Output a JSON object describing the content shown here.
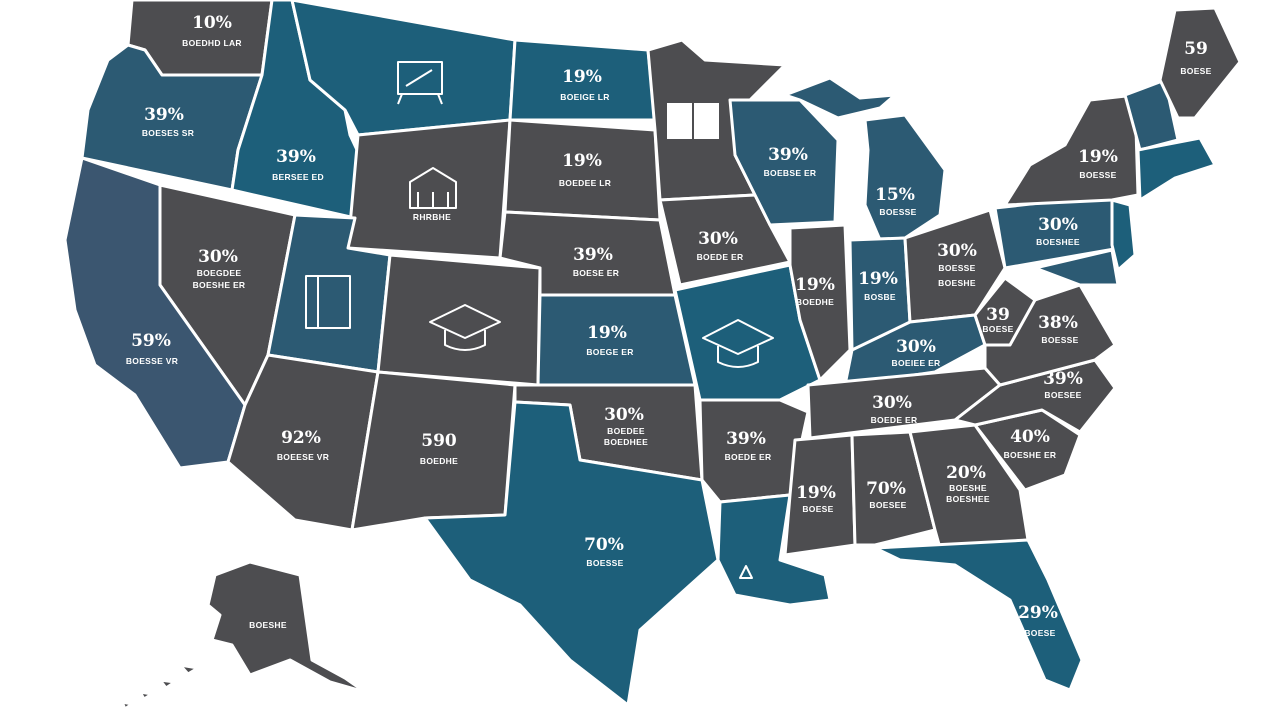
{
  "palette": {
    "gray": "#4d4d50",
    "teal": "#1d5f7a",
    "slate": "#3b5670",
    "background": "#ffffff",
    "text": "#ffffff"
  },
  "icons": [
    "chalkboard-icon",
    "school-building-icon",
    "notebook-icon",
    "graduation-cap-icon",
    "open-book-icon"
  ],
  "labels": {
    "wa": {
      "value": "10%",
      "sub": "BOEDHD LAR"
    },
    "or": {
      "value": "39%",
      "sub": "BOESES SR"
    },
    "id": {
      "value": "39%",
      "sub": "BERSEE ED"
    },
    "nd": {
      "value": "19%",
      "sub": "BOEIGE LR"
    },
    "wy": {
      "sub": "RHRBHE"
    },
    "sd": {
      "value": "19%",
      "sub": "BOEDEE LR"
    },
    "ne": {
      "value": "39%",
      "sub": "BOESE ER"
    },
    "nv": {
      "value": "30%",
      "sub": "BOEGDEE"
    },
    "nv2": {
      "sub": "BOESHE ER"
    },
    "ca": {
      "value": "59%",
      "sub": "BOESSE VR"
    },
    "ks": {
      "value": "19%",
      "sub": "BOEGE ER"
    },
    "ia": {
      "value": "30%",
      "sub": "BOEDE ER"
    },
    "wi": {
      "value": "39%",
      "sub": "BOEBSE ER"
    },
    "mi": {
      "value": "15%",
      "sub": "BOESSE"
    },
    "il": {
      "value": "19%",
      "sub": "BOEDHE"
    },
    "in": {
      "value": "19%",
      "sub": "BOSBE"
    },
    "oh": {
      "value": "30%",
      "sub": "BOESSE"
    },
    "oh2": {
      "sub": "BOESHE"
    },
    "pa": {
      "value": "30%",
      "sub": "BOESHEE"
    },
    "ny": {
      "value": "19%",
      "sub": "BOESSE"
    },
    "me": {
      "value": "59",
      "sub": "BOESE"
    },
    "wv": {
      "value": "39",
      "sub": "BOESE"
    },
    "va": {
      "value": "38%",
      "sub": "BOESSE"
    },
    "ky": {
      "value": "30%",
      "sub": "BOEIEE ER"
    },
    "nc": {
      "value": "39%",
      "sub": "BOESEE"
    },
    "tn": {
      "value": "30%",
      "sub": "BOEDE ER"
    },
    "az": {
      "value": "92%",
      "sub": "BOEESE VR"
    },
    "nm": {
      "value": "590",
      "sub": "BOEDHE"
    },
    "ok": {
      "value": "30%",
      "sub": "BOEDEE"
    },
    "ok2": {
      "sub": "BOEDHEE"
    },
    "ar": {
      "value": "39%",
      "sub": "BOEDE ER"
    },
    "ms": {
      "value": "19%",
      "sub": "BOESE"
    },
    "al": {
      "value": "70%",
      "sub": "BOESEE"
    },
    "ga": {
      "value": "20%",
      "sub": "BOESHE"
    },
    "ga2": {
      "sub": "BOESHEE"
    },
    "sc": {
      "value": "40%",
      "sub": "BOESHE ER"
    },
    "tx": {
      "value": "70%",
      "sub": "BOESSE"
    },
    "fl": {
      "value": "29%",
      "sub": "BOESE"
    },
    "ak": {
      "sub": "BOESHE"
    }
  }
}
